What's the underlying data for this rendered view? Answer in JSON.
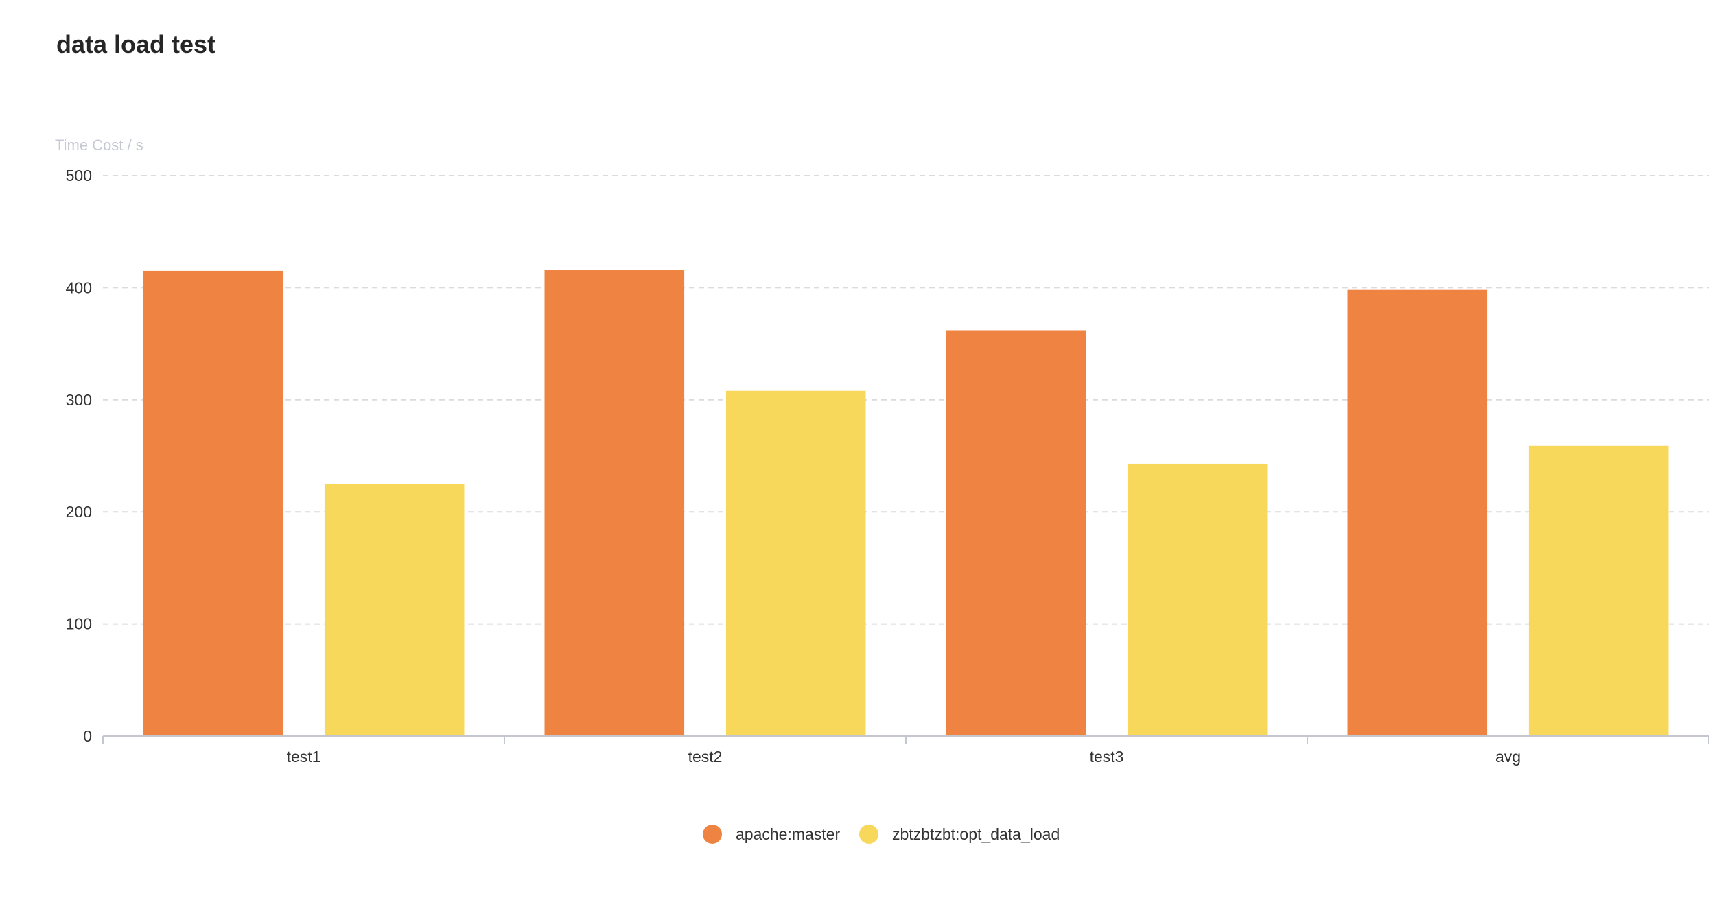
{
  "chart_data": {
    "type": "bar",
    "title": "data load test",
    "ylabel": "Time Cost / s",
    "xlabel": "",
    "categories": [
      "test1",
      "test2",
      "test3",
      "avg"
    ],
    "series": [
      {
        "name": "apache:master",
        "color": "#ef8442",
        "values": [
          415,
          416,
          362,
          398
        ]
      },
      {
        "name": "zbtzbtzbt:opt_data_load",
        "color": "#f8d85b",
        "values": [
          225,
          308,
          243,
          259
        ]
      }
    ],
    "ylim": [
      0,
      500
    ],
    "yticks": [
      0,
      100,
      200,
      300,
      400,
      500
    ],
    "grid": true,
    "legend_position": "bottom-center"
  }
}
